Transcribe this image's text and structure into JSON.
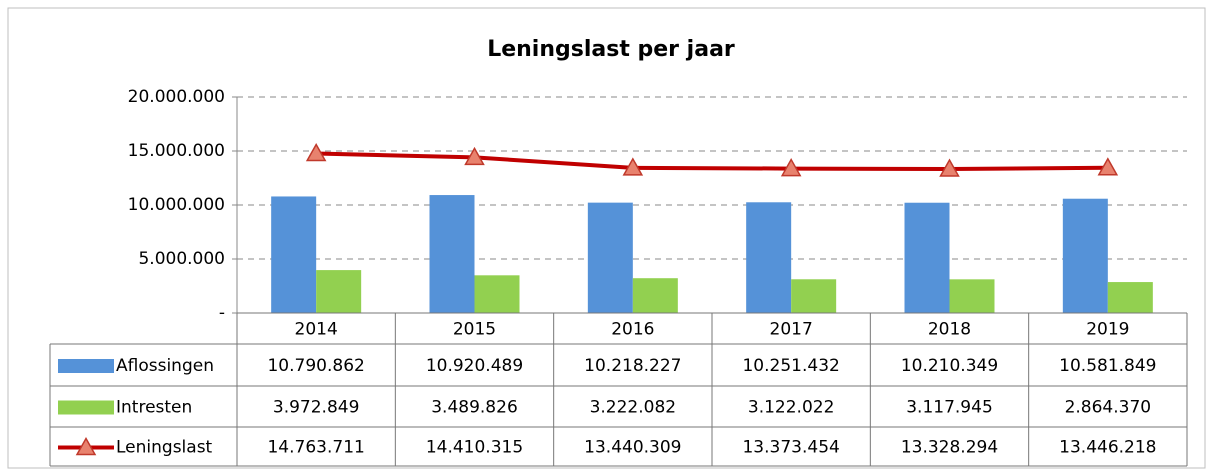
{
  "chart_data": {
    "type": "bar",
    "title": "Leningslast per jaar",
    "categories": [
      "2014",
      "2015",
      "2016",
      "2017",
      "2018",
      "2019"
    ],
    "series": [
      {
        "name": "Aflossingen",
        "color": "#5592d8",
        "type": "bar",
        "values": [
          10790862,
          10920489,
          10218227,
          10251432,
          10210349,
          10581849
        ],
        "value_labels": [
          "10.790.862",
          "10.920.489",
          "10.218.227",
          "10.251.432",
          "10.210.349",
          "10.581.849"
        ]
      },
      {
        "name": "Intresten",
        "color": "#92d050",
        "type": "bar",
        "values": [
          3972849,
          3489826,
          3222082,
          3122022,
          3117945,
          2864370
        ],
        "value_labels": [
          "3.972.849",
          "3.489.826",
          "3.222.082",
          "3.122.022",
          "3.117.945",
          "2.864.370"
        ]
      },
      {
        "name": "Leningslast",
        "color": "#c00000",
        "type": "line",
        "values": [
          14763711,
          14410315,
          13440309,
          13373454,
          13328294,
          13446218
        ],
        "value_labels": [
          "14.763.711",
          "14.410.315",
          "13.440.309",
          "13.373.454",
          "13.328.294",
          "13.446.218"
        ]
      }
    ],
    "ylim": [
      0,
      20000000
    ],
    "yticks": [
      {
        "value": 0,
        "label": "-"
      },
      {
        "value": 5000000,
        "label": "5.000.000"
      },
      {
        "value": 10000000,
        "label": "10.000.000"
      },
      {
        "value": 15000000,
        "label": "15.000.000"
      },
      {
        "value": 20000000,
        "label": "20.000.000"
      }
    ],
    "grid": true
  }
}
